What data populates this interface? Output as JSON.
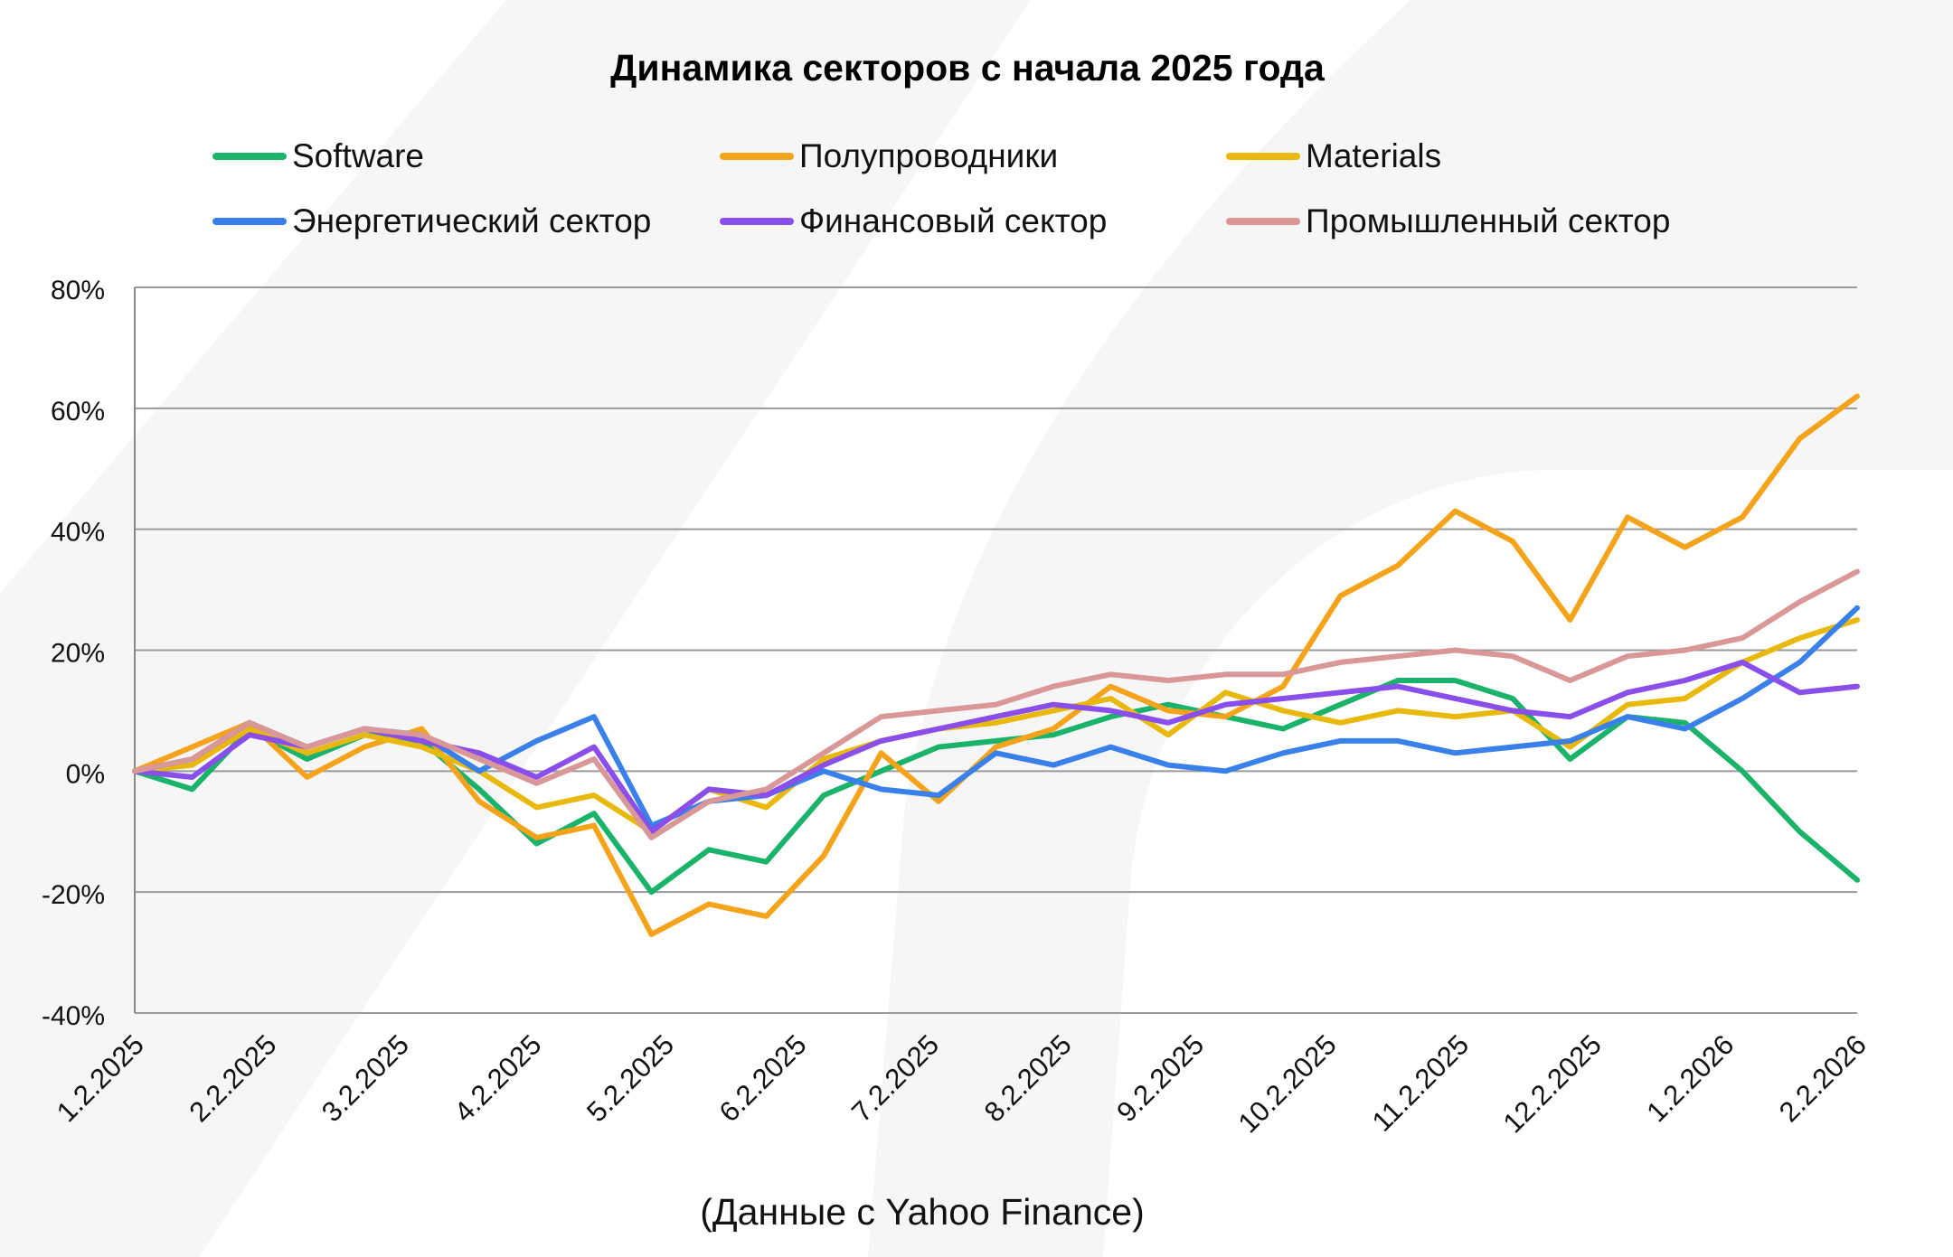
{
  "chart_data": {
    "type": "line",
    "title": "Динамика секторов с начала 2025 года",
    "xlabel": "",
    "ylabel": "",
    "ylim": [
      -40,
      80
    ],
    "yticks": [
      "80%",
      "60%",
      "40%",
      "20%",
      "0%",
      "-20%",
      "-40%"
    ],
    "xticks": [
      "1.2.2025",
      "2.2.2025",
      "3.2.2025",
      "4.2.2025",
      "5.2.2025",
      "6.2.2025",
      "7.2.2025",
      "8.2.2025",
      "9.2.2025",
      "10.2.2025",
      "11.2.2025",
      "12.2.2025",
      "1.2.2026",
      "2.2.2026"
    ],
    "grid": true,
    "legend_position": "top",
    "series": [
      {
        "name": "Software",
        "color": "#1bb36b",
        "values": [
          0,
          -3,
          7,
          2,
          6,
          5,
          -3,
          -12,
          -7,
          -20,
          -13,
          -15,
          -4,
          0,
          4,
          5,
          6,
          9,
          11,
          9,
          7,
          11,
          15,
          15,
          12,
          2,
          9,
          8,
          0,
          -10,
          -18
        ]
      },
      {
        "name": "Полупроводники",
        "color": "#f5a31a",
        "values": [
          0,
          4,
          8,
          -1,
          4,
          7,
          -5,
          -11,
          -9,
          -27,
          -22,
          -24,
          -14,
          3,
          -5,
          4,
          7,
          14,
          10,
          9,
          14,
          29,
          34,
          43,
          38,
          25,
          42,
          37,
          42,
          55,
          62
        ]
      },
      {
        "name": "Materials",
        "color": "#e8b80b",
        "values": [
          0,
          1,
          7,
          3,
          6,
          4,
          0,
          -6,
          -4,
          -10,
          -3,
          -6,
          2,
          5,
          7,
          8,
          10,
          12,
          6,
          13,
          10,
          8,
          10,
          9,
          10,
          4,
          11,
          12,
          18,
          22,
          25
        ]
      },
      {
        "name": "Энергетический сектор",
        "color": "#3a80ea",
        "values": [
          0,
          2,
          8,
          4,
          7,
          6,
          0,
          5,
          9,
          -9,
          -5,
          -4,
          0,
          -3,
          -4,
          3,
          1,
          4,
          1,
          0,
          3,
          5,
          5,
          3,
          4,
          5,
          9,
          7,
          12,
          18,
          27
        ]
      },
      {
        "name": "Финансовый сектор",
        "color": "#8a4eea",
        "values": [
          0,
          -1,
          6,
          4,
          7,
          5,
          3,
          -1,
          4,
          -10,
          -3,
          -4,
          1,
          5,
          7,
          9,
          11,
          10,
          8,
          11,
          12,
          13,
          14,
          12,
          10,
          9,
          13,
          15,
          18,
          13,
          14
        ]
      },
      {
        "name": "Промышленный сектор",
        "color": "#d99797",
        "values": [
          0,
          2,
          8,
          4,
          7,
          6,
          2,
          -2,
          2,
          -11,
          -5,
          -3,
          3,
          9,
          10,
          11,
          14,
          16,
          15,
          16,
          16,
          18,
          19,
          20,
          19,
          15,
          19,
          20,
          22,
          28,
          33
        ]
      }
    ]
  },
  "source_note": "(Данные с Yahoo Finance)"
}
